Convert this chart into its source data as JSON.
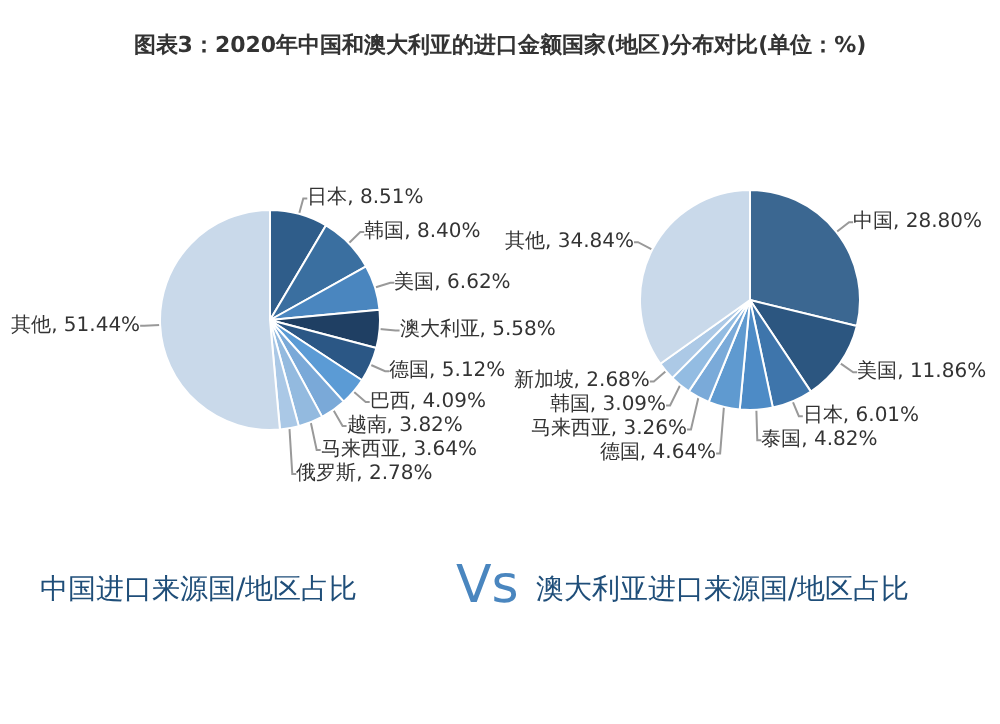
{
  "chart_data": [
    {
      "type": "pie",
      "title": "图表3：2020年中国和澳大利亚的进口金额国家(地区)分布对比(单位：%)",
      "annotations": [
        "中国进口来源国/地区占比",
        "Vs"
      ],
      "categories": [
        "日本",
        "韩国",
        "美国",
        "澳大利亚",
        "德国",
        "巴西",
        "越南",
        "马来西亚",
        "俄罗斯",
        "其他"
      ],
      "values": [
        8.51,
        8.4,
        6.62,
        5.58,
        5.12,
        4.09,
        3.82,
        3.64,
        2.78,
        51.44
      ],
      "value_labels": [
        ", 8.51%",
        ", 8.40%",
        ", 6.62%",
        ", 5.58%",
        ", 5.12%",
        ", 4.09%",
        ", 3.82%",
        ", 3.64%",
        ", 2.78%",
        ", 51.44%"
      ],
      "colors": [
        "#2f5d8a",
        "#3a6fa0",
        "#4a86bf",
        "#1f3f63",
        "#2b5785",
        "#5b9bd5",
        "#7aa9d8",
        "#93badf",
        "#aac8e6",
        "#c9d9ea"
      ]
    },
    {
      "type": "pie",
      "annotations": [
        "澳大利亚进口来源国/地区占比"
      ],
      "categories": [
        "中国",
        "美国",
        "日本",
        "泰国",
        "德国",
        "马来西亚",
        "韩国",
        "新加坡",
        "其他"
      ],
      "values": [
        28.8,
        11.86,
        6.01,
        4.82,
        4.64,
        3.26,
        3.09,
        2.68,
        34.84
      ],
      "value_labels": [
        ", 28.80%",
        ", 11.86%",
        ", 6.01%",
        ", 4.82%",
        ", 4.64%",
        ", 3.26%",
        ", 3.09%",
        ", 2.68%",
        ", 34.84%"
      ],
      "colors": [
        "#3b6791",
        "#2c5680",
        "#3e75ab",
        "#4d8bc6",
        "#5f9ad0",
        "#7aaad9",
        "#93bce2",
        "#acc9e6",
        "#c9d9ea"
      ]
    }
  ]
}
